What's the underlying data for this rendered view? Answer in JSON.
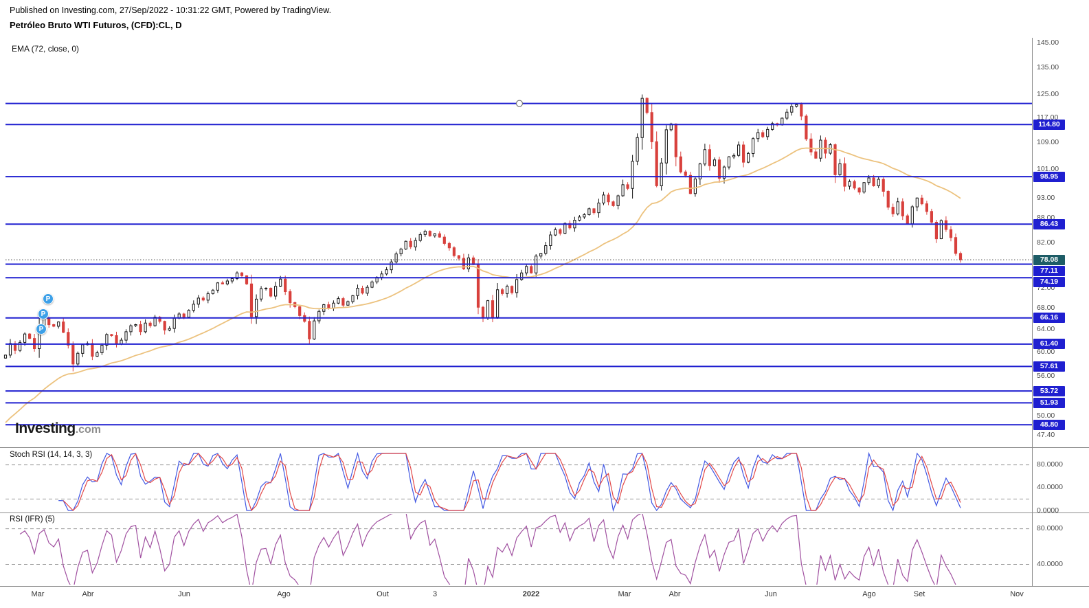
{
  "header": {
    "published_line": "Published on Investing.com, 27/Sep/2022 - 10:31:22 GMT, Powered by TradingView.",
    "symbol_line": "Petróleo Bruto WTI Futuros, (CFD):CL, D"
  },
  "indicators": {
    "ema_label": "EMA (72, close, 0)",
    "stoch_label": "Stoch RSI (14, 14, 3, 3)",
    "rsi_label": "RSI (IFR) (5)"
  },
  "watermark": {
    "brand": "Investing",
    "suffix": ".com"
  },
  "colors": {
    "level_line": "#1f1fd0",
    "level_chip_bg": "#1f1fd0",
    "current_chip_bg": "#1d5c66",
    "candle_up": "#141414",
    "candle_down": "#d8403c",
    "ema": "#ecc27e",
    "stoch_k": "#4157e3",
    "stoch_d": "#e24848",
    "rsi": "#a050a0",
    "pin_bg": "#3da0e8",
    "grid_dash": "#9a9a9a"
  },
  "price_axis": {
    "current": "78.08",
    "ticks": [
      {
        "label": "145.00",
        "price": 145.0
      },
      {
        "label": "135.00",
        "price": 135.0
      },
      {
        "label": "125.00",
        "price": 125.0
      },
      {
        "label": "117.00",
        "price": 117.0
      },
      {
        "label": "109.00",
        "price": 109.0
      },
      {
        "label": "101.00",
        "price": 101.0
      },
      {
        "label": "93.00",
        "price": 93.0
      },
      {
        "label": "88.00",
        "price": 88.0
      },
      {
        "label": "82.00",
        "price": 82.0
      },
      {
        "label": "72.00",
        "price": 72.0
      },
      {
        "label": "68.00",
        "price": 68.0
      },
      {
        "label": "64.00",
        "price": 64.0
      },
      {
        "label": "60.00",
        "price": 60.0
      },
      {
        "label": "56.00",
        "price": 56.0
      },
      {
        "label": "50.00",
        "price": 50.0
      },
      {
        "label": "47.40",
        "price": 47.4
      }
    ]
  },
  "pins": [
    {
      "label": "P",
      "price": 69.9
    },
    {
      "label": "P",
      "price": 66.9
    },
    {
      "label": "P",
      "price": 64.1
    }
  ],
  "chart_data": [
    {
      "type": "candlestick",
      "title": "Petróleo Bruto WTI Futuros, (CFD):CL, D",
      "scale": "log",
      "ylim": [
        47.4,
        145.0
      ],
      "yticks": [
        145,
        135,
        125,
        117,
        109,
        101,
        93,
        88,
        82,
        72,
        68,
        64,
        60,
        56,
        50,
        47.4
      ],
      "x_labels": [
        "Mar",
        "Abr",
        "Jun",
        "Ago",
        "Out",
        "3",
        "2022",
        "Mar",
        "Abr",
        "Jun",
        "Ago",
        "Set",
        "Nov"
      ],
      "open_first": 59.0,
      "close": [
        59.5,
        61.5,
        60.3,
        61.7,
        63.2,
        62.4,
        60.6,
        64.8,
        66.0,
        64.9,
        64.6,
        65.4,
        63.5,
        61.2,
        58.0,
        59.8,
        61.3,
        61.5,
        59.3,
        59.9,
        61.2,
        63.1,
        62.9,
        61.4,
        62.1,
        63.6,
        64.7,
        64.9,
        63.6,
        65.2,
        64.7,
        66.3,
        65.5,
        63.9,
        64.2,
        66.1,
        66.9,
        66.3,
        67.6,
        68.8,
        70.0,
        69.6,
        70.9,
        71.6,
        73.1,
        72.9,
        73.5,
        74.0,
        75.2,
        74.6,
        72.9,
        66.4,
        69.8,
        71.9,
        72.0,
        70.4,
        72.4,
        73.9,
        71.3,
        69.1,
        68.3,
        66.6,
        65.5,
        62.3,
        65.6,
        67.4,
        68.7,
        68.0,
        69.0,
        69.9,
        68.6,
        69.3,
        70.5,
        72.0,
        71.0,
        72.2,
        73.3,
        74.3,
        75.0,
        75.9,
        77.6,
        79.4,
        80.5,
        82.3,
        81.0,
        82.5,
        83.9,
        84.7,
        83.6,
        84.1,
        83.3,
        81.8,
        80.8,
        79.0,
        78.4,
        76.1,
        78.5,
        77.0,
        68.2,
        66.2,
        69.5,
        66.3,
        71.7,
        70.9,
        72.4,
        71.1,
        73.8,
        75.2,
        76.6,
        75.2,
        78.9,
        79.5,
        81.3,
        83.8,
        85.1,
        84.2,
        86.6,
        85.5,
        87.4,
        88.2,
        88.8,
        90.3,
        89.3,
        91.8,
        93.9,
        92.1,
        91.1,
        93.7,
        96.7,
        95.7,
        103.4,
        110.6,
        123.7,
        118.8,
        109.3,
        96.4,
        102.9,
        113.1,
        115.0,
        104.7,
        100.3,
        99.3,
        94.3,
        98.3,
        102.6,
        106.9,
        102.1,
        103.8,
        98.5,
        101.7,
        104.7,
        105.1,
        108.3,
        103.1,
        105.7,
        110.3,
        112.2,
        110.9,
        113.2,
        115.1,
        114.7,
        116.9,
        118.9,
        120.9,
        121.5,
        117.6,
        110.2,
        106.2,
        104.3,
        109.8,
        105.8,
        108.4,
        99.5,
        102.7,
        96.3,
        97.6,
        95.8,
        94.7,
        97.3,
        98.6,
        96.4,
        98.2,
        94.9,
        90.7,
        89.0,
        92.1,
        88.5,
        86.5,
        90.8,
        93.1,
        91.6,
        89.6,
        86.9,
        82.9,
        87.3,
        85.1,
        83.2,
        79.5,
        78.08
      ],
      "last_price": 78.08,
      "ema": {
        "label": "EMA (72, close, 0)",
        "period": 72
      },
      "levels": [
        {
          "price": 121.9,
          "label": null
        },
        {
          "price": 114.8,
          "label": "114.80"
        },
        {
          "price": 98.95,
          "label": "98.95"
        },
        {
          "price": 86.43,
          "label": "86.43"
        },
        {
          "price": 77.11,
          "label": "77.11"
        },
        {
          "price": 74.19,
          "label": "74.19"
        },
        {
          "price": 66.16,
          "label": "66.16"
        },
        {
          "price": 61.4,
          "label": "61.40"
        },
        {
          "price": 57.61,
          "label": "57.61"
        },
        {
          "price": 53.72,
          "label": "53.72"
        },
        {
          "price": 51.93,
          "label": "51.93"
        },
        {
          "price": 48.8,
          "label": "48.80"
        }
      ]
    },
    {
      "type": "line",
      "title": "Stoch RSI (14, 14, 3, 3)",
      "series": [
        "K",
        "D"
      ],
      "yticks": [
        {
          "label": "80.0000",
          "v": 80
        },
        {
          "label": "40.0000",
          "v": 40
        },
        {
          "label": "0.0000",
          "v": 0
        }
      ],
      "dashed_levels": [
        80,
        20
      ],
      "derived_from": "close"
    },
    {
      "type": "line",
      "title": "RSI (IFR) (5)",
      "yticks": [
        {
          "label": "80.0000",
          "v": 80
        },
        {
          "label": "40.0000",
          "v": 40
        }
      ],
      "dashed_levels": [
        80,
        40
      ],
      "derived_from": "close"
    }
  ]
}
